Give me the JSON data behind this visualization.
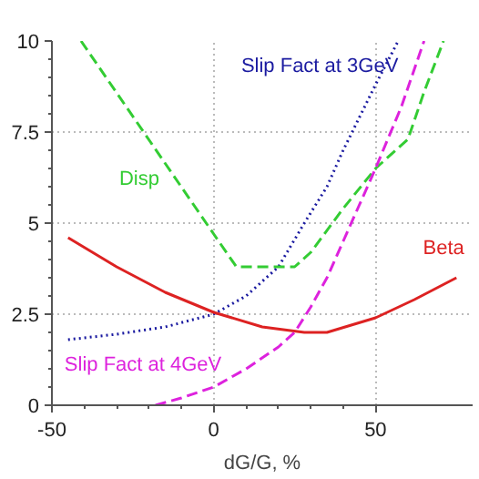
{
  "chart_data": {
    "type": "line",
    "xlabel": "dG/G, %",
    "xlim": [
      -50,
      80
    ],
    "ylim": [
      0,
      10
    ],
    "xticks": [
      -50,
      0,
      50
    ],
    "yticks": [
      0,
      2.5,
      5,
      7.5,
      10
    ],
    "grid": true,
    "marker": "none",
    "series": [
      {
        "name": "Slip Fact at 3GeV",
        "color": "#1a1aa0",
        "line_style": "dotted",
        "x": [
          -45,
          -30,
          -15,
          0,
          10,
          20,
          28,
          35,
          40,
          45,
          50,
          57
        ],
        "values": [
          1.8,
          1.95,
          2.15,
          2.5,
          3.0,
          3.8,
          5.0,
          6.0,
          7.0,
          7.9,
          8.8,
          10
        ]
      },
      {
        "name": "Disp",
        "color": "#33cc33",
        "line_style": "dashed",
        "x": [
          -41,
          0,
          7,
          25,
          30,
          40,
          50,
          60,
          65,
          71
        ],
        "values": [
          10,
          4.7,
          3.8,
          3.8,
          4.2,
          5.4,
          6.5,
          7.3,
          8.6,
          10
        ]
      },
      {
        "name": "Beta",
        "color": "#dd2222",
        "line_style": "solid",
        "x": [
          -45,
          -30,
          -15,
          0,
          15,
          28,
          35,
          50,
          62,
          75
        ],
        "values": [
          4.6,
          3.8,
          3.1,
          2.55,
          2.15,
          2.0,
          2.0,
          2.4,
          2.9,
          3.5
        ]
      },
      {
        "name": "Slip Fact at 4GeV",
        "color": "#dd22dd",
        "line_style": "dashed",
        "x": [
          -18,
          -10,
          0,
          10,
          20,
          25,
          30,
          35,
          40,
          45,
          50,
          58,
          65
        ],
        "values": [
          0,
          0.2,
          0.5,
          1.0,
          1.6,
          2.0,
          2.7,
          3.5,
          4.5,
          5.5,
          6.5,
          8.2,
          10
        ]
      }
    ]
  }
}
